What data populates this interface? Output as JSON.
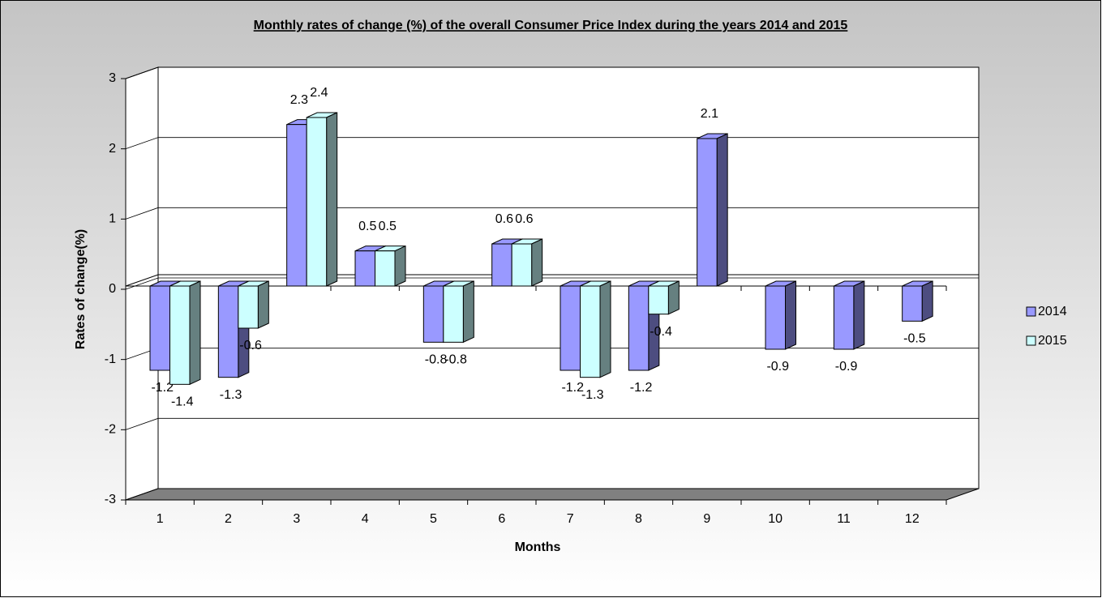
{
  "chart_data": {
    "type": "bar3d",
    "title": "Monthly rates of change (%) of the overall Consumer Price Index during the years 2014 and 2015",
    "x_label": "Months",
    "y_label": "Rates of change(%)",
    "categories": [
      "1",
      "2",
      "3",
      "4",
      "5",
      "6",
      "7",
      "8",
      "9",
      "10",
      "11",
      "12"
    ],
    "series": [
      {
        "name": "2014",
        "color": "#9999ff",
        "side_color": "#4d4d80",
        "values": [
          -1.2,
          -1.3,
          2.3,
          0.5,
          -0.8,
          0.6,
          -1.2,
          -1.2,
          2.1,
          -0.9,
          -0.9,
          -0.5
        ]
      },
      {
        "name": "2015",
        "color": "#ccffff",
        "side_color": "#668080",
        "values": [
          -1.4,
          -0.6,
          2.4,
          0.5,
          -0.8,
          0.6,
          -1.3,
          -0.4,
          null,
          null,
          null,
          null
        ]
      }
    ],
    "ylim": [
      -3,
      3
    ],
    "yticks": [
      -3,
      -2,
      -1,
      0,
      1,
      2,
      3
    ],
    "grid": true,
    "legend": "right"
  }
}
